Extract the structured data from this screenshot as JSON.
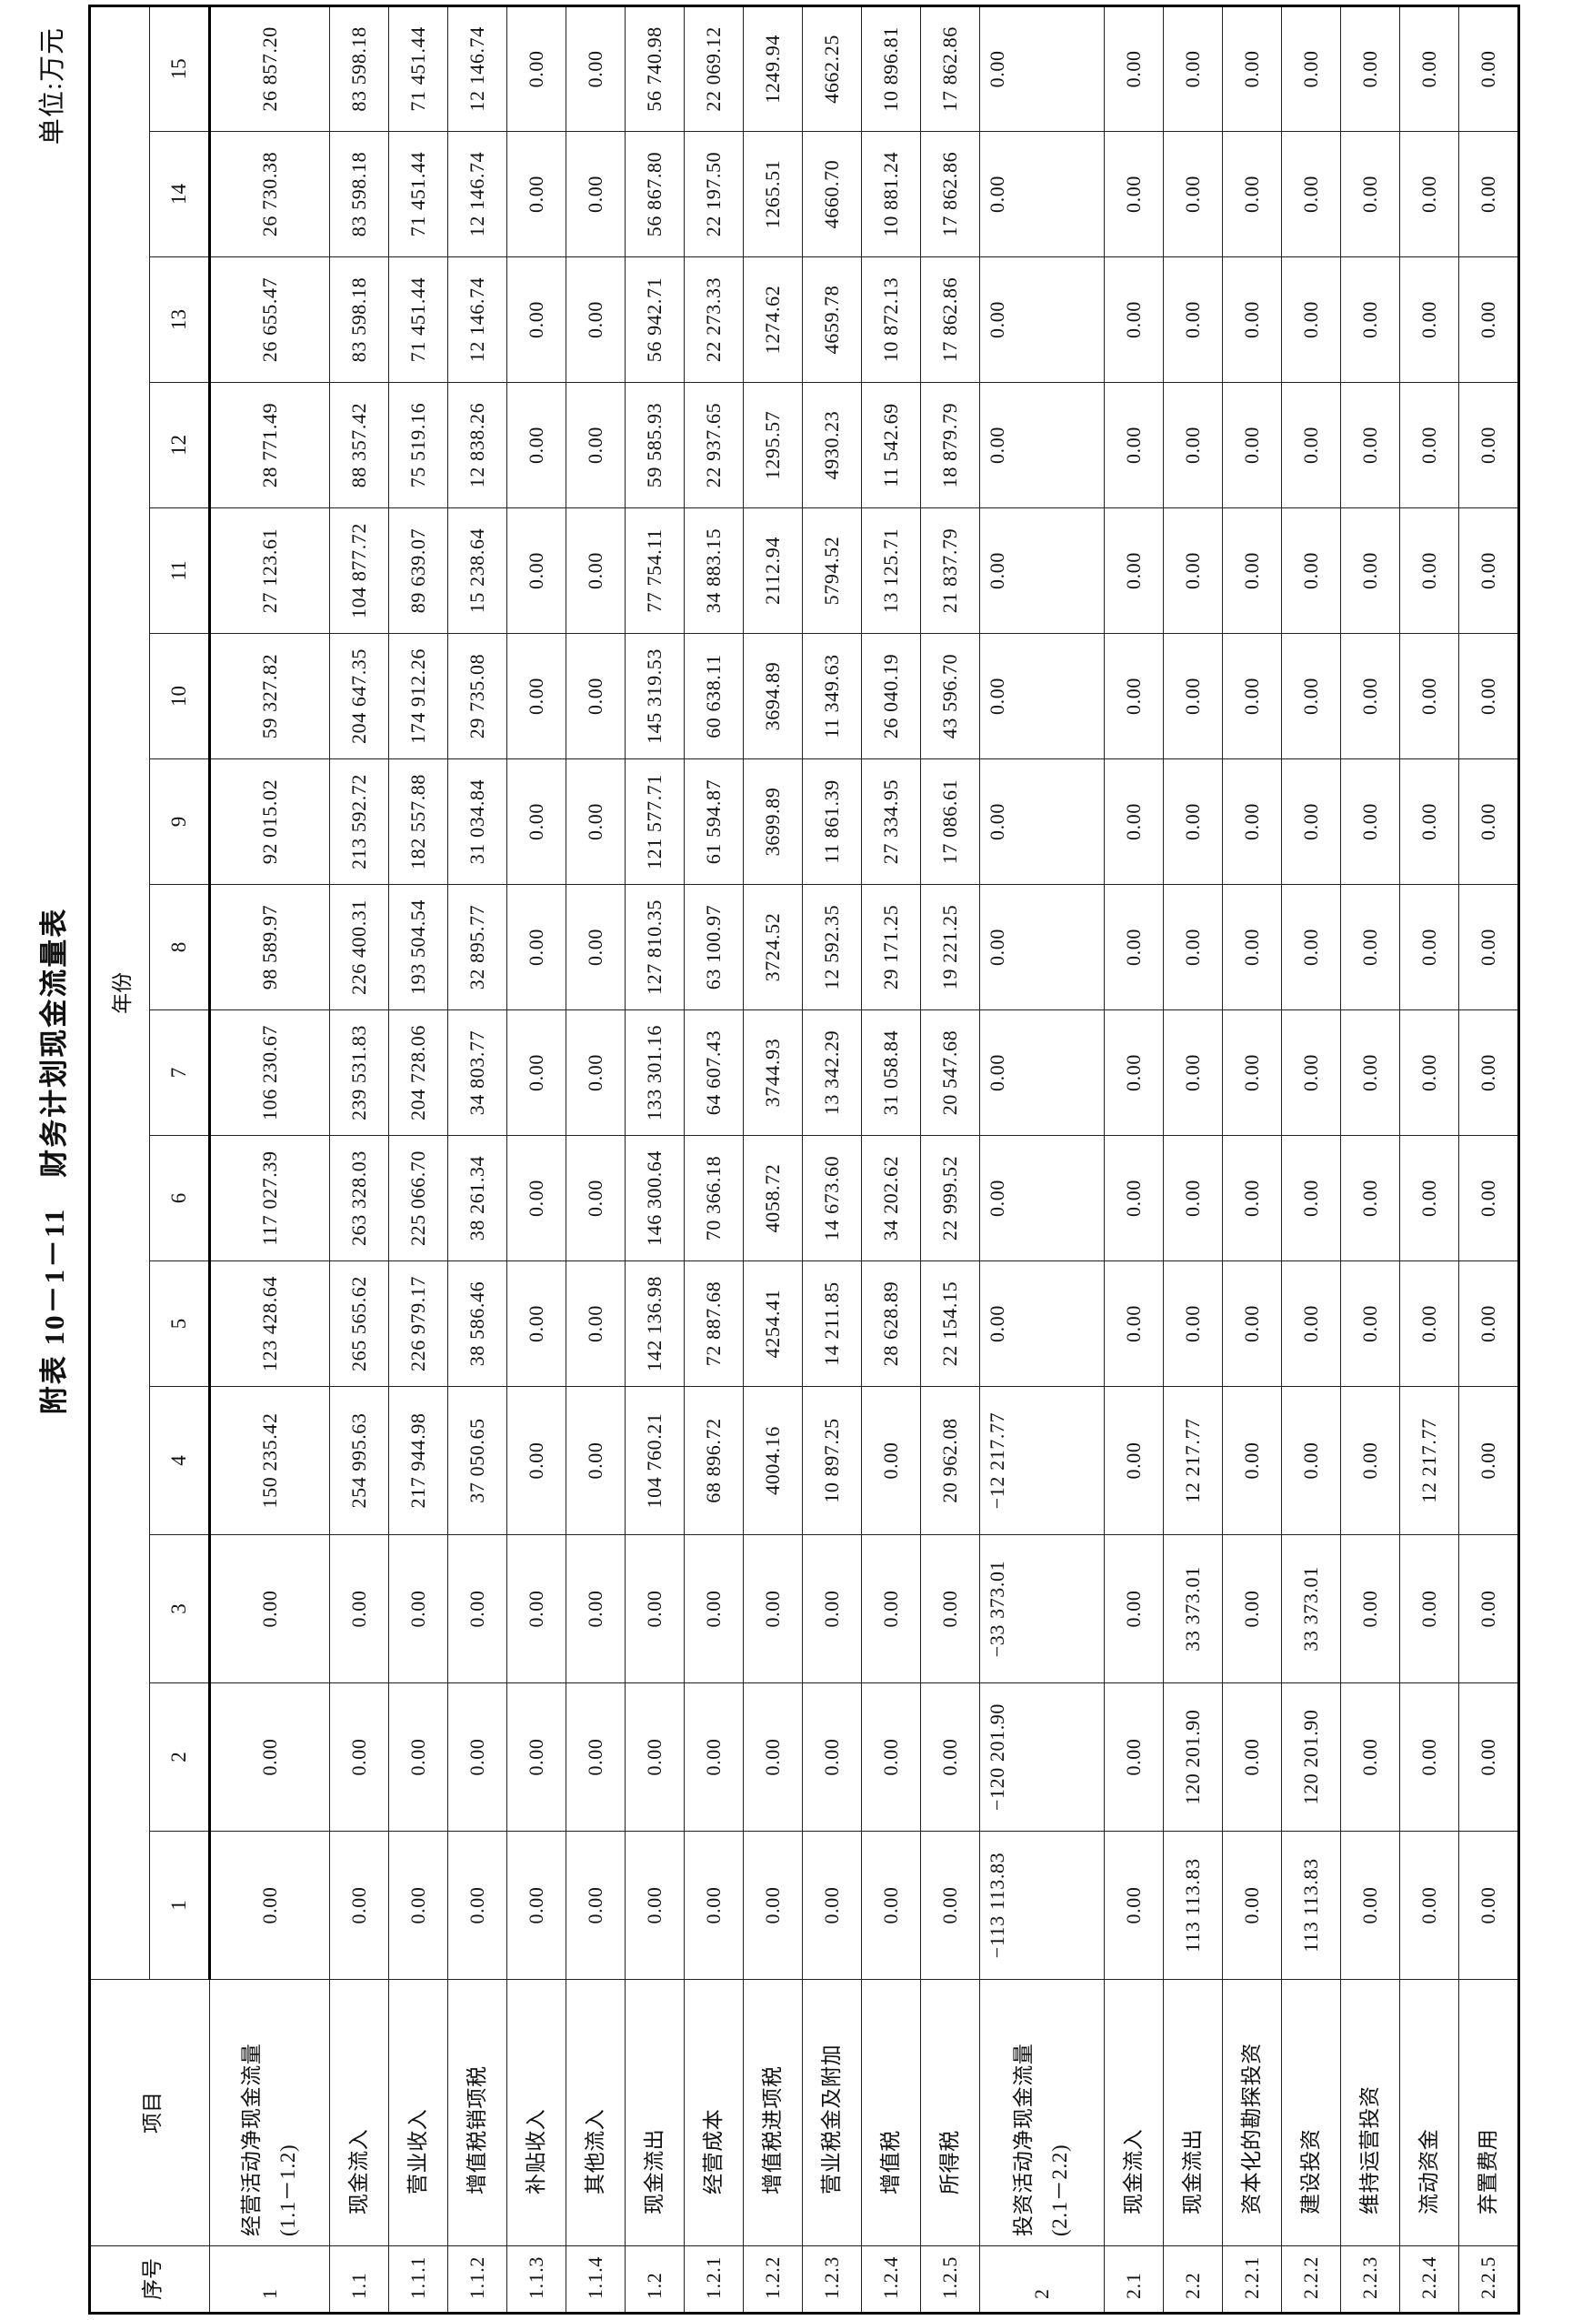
{
  "title": "附表 10－1－11　财务计划现金流量表",
  "unit": "单位:万元",
  "table": {
    "headers": {
      "seq": "序号",
      "item": "项目",
      "year_group": "年份",
      "years": [
        "1",
        "2",
        "3",
        "4",
        "5",
        "6",
        "7",
        "8",
        "9",
        "10",
        "11",
        "12",
        "13",
        "14",
        "15"
      ]
    },
    "rows": [
      {
        "seq": "1",
        "item": "经营活动净现金流量",
        "formula": "(1.1－1.2)",
        "values": [
          "0.00",
          "0.00",
          "0.00",
          "150 235.42",
          "123 428.64",
          "117 027.39",
          "106 230.67",
          "98 589.97",
          "92 015.02",
          "59 327.82",
          "27 123.61",
          "28 771.49",
          "26 655.47",
          "26 730.38",
          "26 857.20"
        ]
      },
      {
        "seq": "1.1",
        "item": "现金流入",
        "values": [
          "0.00",
          "0.00",
          "0.00",
          "254 995.63",
          "265 565.62",
          "263 328.03",
          "239 531.83",
          "226 400.31",
          "213 592.72",
          "204 647.35",
          "104 877.72",
          "88 357.42",
          "83 598.18",
          "83 598.18",
          "83 598.18"
        ]
      },
      {
        "seq": "1.1.1",
        "item": "营业收入",
        "values": [
          "0.00",
          "0.00",
          "0.00",
          "217 944.98",
          "226 979.17",
          "225 066.70",
          "204 728.06",
          "193 504.54",
          "182 557.88",
          "174 912.26",
          "89 639.07",
          "75 519.16",
          "71 451.44",
          "71 451.44",
          "71 451.44"
        ]
      },
      {
        "seq": "1.1.2",
        "item": "增值税销项税",
        "values": [
          "0.00",
          "0.00",
          "0.00",
          "37 050.65",
          "38 586.46",
          "38 261.34",
          "34 803.77",
          "32 895.77",
          "31 034.84",
          "29 735.08",
          "15 238.64",
          "12 838.26",
          "12 146.74",
          "12 146.74",
          "12 146.74"
        ]
      },
      {
        "seq": "1.1.3",
        "item": "补贴收入",
        "values": [
          "0.00",
          "0.00",
          "0.00",
          "0.00",
          "0.00",
          "0.00",
          "0.00",
          "0.00",
          "0.00",
          "0.00",
          "0.00",
          "0.00",
          "0.00",
          "0.00",
          "0.00"
        ]
      },
      {
        "seq": "1.1.4",
        "item": "其他流入",
        "values": [
          "0.00",
          "0.00",
          "0.00",
          "0.00",
          "0.00",
          "0.00",
          "0.00",
          "0.00",
          "0.00",
          "0.00",
          "0.00",
          "0.00",
          "0.00",
          "0.00",
          "0.00"
        ]
      },
      {
        "seq": "1.2",
        "item": "现金流出",
        "values": [
          "0.00",
          "0.00",
          "0.00",
          "104 760.21",
          "142 136.98",
          "146 300.64",
          "133 301.16",
          "127 810.35",
          "121 577.71",
          "145 319.53",
          "77 754.11",
          "59 585.93",
          "56 942.71",
          "56 867.80",
          "56 740.98"
        ]
      },
      {
        "seq": "1.2.1",
        "item": "经营成本",
        "values": [
          "0.00",
          "0.00",
          "0.00",
          "68 896.72",
          "72 887.68",
          "70 366.18",
          "64 607.43",
          "63 100.97",
          "61 594.87",
          "60 638.11",
          "34 883.15",
          "22 937.65",
          "22 273.33",
          "22 197.50",
          "22 069.12"
        ]
      },
      {
        "seq": "1.2.2",
        "item": "增值税进项税",
        "values": [
          "0.00",
          "0.00",
          "0.00",
          "4004.16",
          "4254.41",
          "4058.72",
          "3744.93",
          "3724.52",
          "3699.89",
          "3694.89",
          "2112.94",
          "1295.57",
          "1274.62",
          "1265.51",
          "1249.94"
        ]
      },
      {
        "seq": "1.2.3",
        "item": "营业税金及附加",
        "values": [
          "0.00",
          "0.00",
          "0.00",
          "10 897.25",
          "14 211.85",
          "14 673.60",
          "13 342.29",
          "12 592.35",
          "11 861.39",
          "11 349.63",
          "5794.52",
          "4930.23",
          "4659.78",
          "4660.70",
          "4662.25"
        ]
      },
      {
        "seq": "1.2.4",
        "item": "增值税",
        "values": [
          "0.00",
          "0.00",
          "0.00",
          "0.00",
          "28 628.89",
          "34 202.62",
          "31 058.84",
          "29 171.25",
          "27 334.95",
          "26 040.19",
          "13 125.71",
          "11 542.69",
          "10 872.13",
          "10 881.24",
          "10 896.81"
        ]
      },
      {
        "seq": "1.2.5",
        "item": "所得税",
        "values": [
          "0.00",
          "0.00",
          "0.00",
          "20 962.08",
          "22 154.15",
          "22 999.52",
          "20 547.68",
          "19 221.25",
          "17 086.61",
          "43 596.70",
          "21 837.79",
          "18 879.79",
          "17 862.86",
          "17 862.86",
          "17 862.86"
        ]
      },
      {
        "seq": "2",
        "item": "投资活动净现金流量",
        "formula": "(2.1－2.2)",
        "values": [
          "−113 113.83",
          "−120 201.90",
          "−33 373.01",
          "−12 217.77",
          "0.00",
          "0.00",
          "0.00",
          "0.00",
          "0.00",
          "0.00",
          "0.00",
          "0.00",
          "0.00",
          "0.00",
          "0.00"
        ]
      },
      {
        "seq": "2.1",
        "item": "现金流入",
        "values": [
          "0.00",
          "0.00",
          "0.00",
          "0.00",
          "0.00",
          "0.00",
          "0.00",
          "0.00",
          "0.00",
          "0.00",
          "0.00",
          "0.00",
          "0.00",
          "0.00",
          "0.00"
        ]
      },
      {
        "seq": "2.2",
        "item": "现金流出",
        "values": [
          "113 113.83",
          "120 201.90",
          "33 373.01",
          "12 217.77",
          "0.00",
          "0.00",
          "0.00",
          "0.00",
          "0.00",
          "0.00",
          "0.00",
          "0.00",
          "0.00",
          "0.00",
          "0.00"
        ]
      },
      {
        "seq": "2.2.1",
        "item": "资本化的勘探投资",
        "values": [
          "0.00",
          "0.00",
          "0.00",
          "0.00",
          "0.00",
          "0.00",
          "0.00",
          "0.00",
          "0.00",
          "0.00",
          "0.00",
          "0.00",
          "0.00",
          "0.00",
          "0.00"
        ]
      },
      {
        "seq": "2.2.2",
        "item": "建设投资",
        "values": [
          "113 113.83",
          "120 201.90",
          "33 373.01",
          "0.00",
          "0.00",
          "0.00",
          "0.00",
          "0.00",
          "0.00",
          "0.00",
          "0.00",
          "0.00",
          "0.00",
          "0.00",
          "0.00"
        ]
      },
      {
        "seq": "2.2.3",
        "item": "维持运营投资",
        "values": [
          "0.00",
          "0.00",
          "0.00",
          "0.00",
          "0.00",
          "0.00",
          "0.00",
          "0.00",
          "0.00",
          "0.00",
          "0.00",
          "0.00",
          "0.00",
          "0.00",
          "0.00"
        ]
      },
      {
        "seq": "2.2.4",
        "item": "流动资金",
        "values": [
          "0.00",
          "0.00",
          "0.00",
          "12 217.77",
          "0.00",
          "0.00",
          "0.00",
          "0.00",
          "0.00",
          "0.00",
          "0.00",
          "0.00",
          "0.00",
          "0.00",
          "0.00"
        ]
      },
      {
        "seq": "2.2.5",
        "item": "弃置费用",
        "values": [
          "0.00",
          "0.00",
          "0.00",
          "0.00",
          "0.00",
          "0.00",
          "0.00",
          "0.00",
          "0.00",
          "0.00",
          "0.00",
          "0.00",
          "0.00",
          "0.00",
          "0.00"
        ]
      }
    ]
  }
}
